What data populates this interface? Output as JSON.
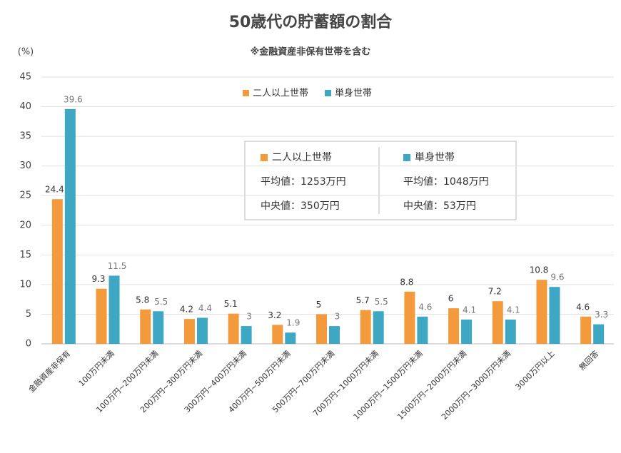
{
  "chart_data": {
    "type": "bar",
    "title": "50歳代の貯蓄額の割合",
    "subtitle": "※金融資産非保有世帯を含む",
    "y_label": "(%)",
    "categories": [
      "金融資産非保有",
      "100万円未満",
      "100万円~200万円未満",
      "200万円~300万円未満",
      "300万円~400万円未満",
      "400万円~500万円未満",
      "500万円~700万円未満",
      "700万円~1000万円未満",
      "1000万円~1500万円未満",
      "1500万円~2000万円未満",
      "2000万円~3000万円未満",
      "3000万円以上",
      "無回答"
    ],
    "series": [
      {
        "name": "二人以上世帯",
        "color": "#f39a3d",
        "values": [
          24.4,
          9.3,
          5.8,
          4.2,
          5.1,
          3.2,
          5,
          5.7,
          8.8,
          6,
          7.2,
          10.8,
          4.6
        ]
      },
      {
        "name": "単身世帯",
        "color": "#3ea8c4",
        "values": [
          39.6,
          11.5,
          5.5,
          4.4,
          3,
          1.9,
          3,
          5.5,
          4.6,
          4.1,
          4.1,
          9.6,
          3.3
        ]
      }
    ],
    "ylim": [
      0,
      45
    ],
    "yticks": [
      0,
      5,
      10,
      15,
      20,
      25,
      30,
      35,
      40,
      45
    ],
    "grid": true,
    "summary": [
      [
        "平均値：1253万円",
        "中央値：350万円"
      ],
      [
        "平均値：1048万円",
        "中央値：53万円"
      ]
    ]
  }
}
